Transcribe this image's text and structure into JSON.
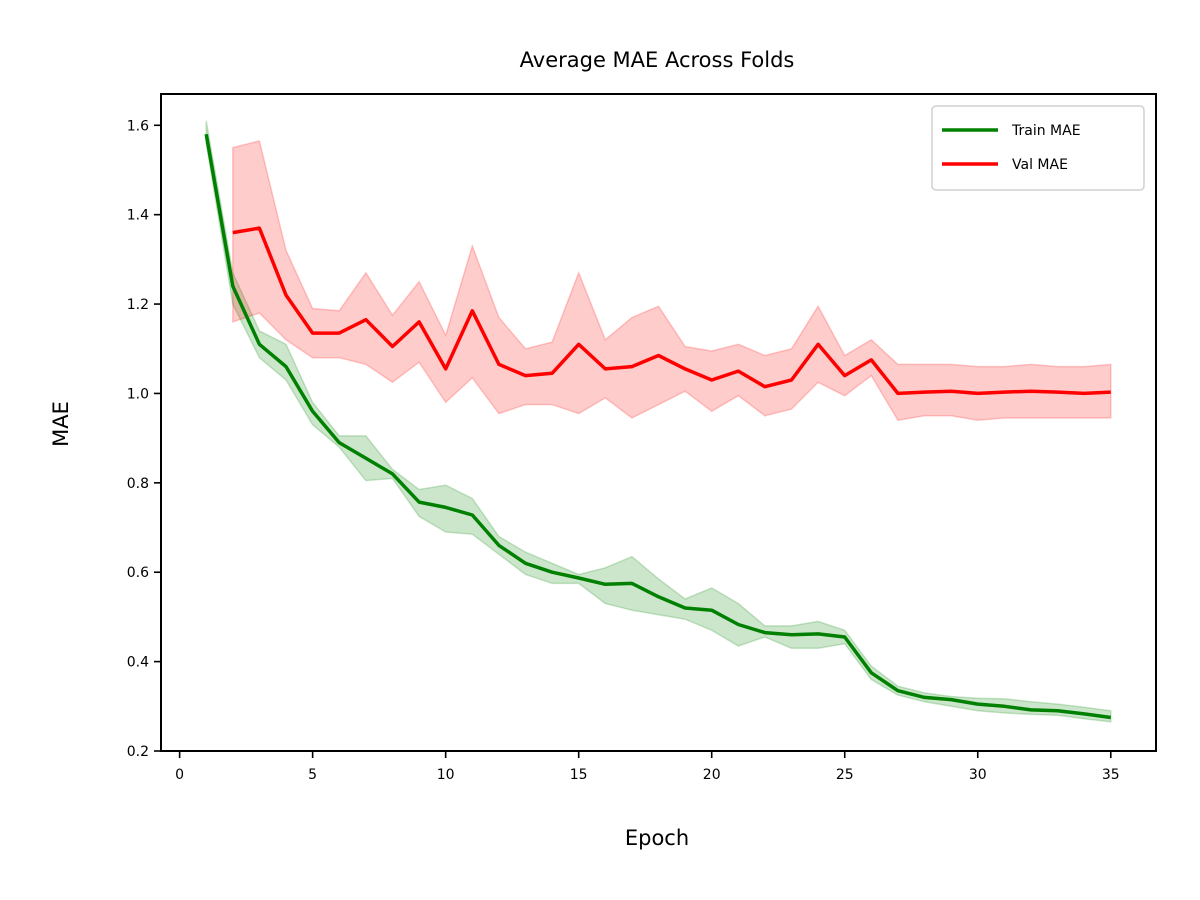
{
  "chart_data": {
    "type": "line",
    "title": "Average MAE Across Folds",
    "xlabel": "Epoch",
    "ylabel": "MAE",
    "xlim": [
      -0.7,
      36.7
    ],
    "ylim": [
      0.2,
      1.67
    ],
    "xticks": [
      0,
      5,
      10,
      15,
      20,
      25,
      30,
      35
    ],
    "yticks": [
      0.2,
      0.4,
      0.6,
      0.8,
      1.0,
      1.2,
      1.4,
      1.6
    ],
    "grid": false,
    "legend_position": "top-right",
    "series": [
      {
        "name": "Train MAE",
        "color": "#008000",
        "band_color": "#008000",
        "x": [
          1,
          2,
          3,
          4,
          5,
          6,
          7,
          8,
          9,
          10,
          11,
          12,
          13,
          14,
          15,
          16,
          17,
          18,
          19,
          20,
          21,
          22,
          23,
          24,
          25,
          26,
          27,
          28,
          29,
          30,
          31,
          32,
          33,
          34,
          35
        ],
        "values": [
          1.58,
          1.24,
          1.11,
          1.06,
          0.96,
          0.89,
          0.855,
          0.82,
          0.757,
          0.745,
          0.728,
          0.66,
          0.62,
          0.6,
          0.587,
          0.573,
          0.575,
          0.545,
          0.52,
          0.515,
          0.483,
          0.465,
          0.46,
          0.462,
          0.455,
          0.375,
          0.335,
          0.32,
          0.315,
          0.305,
          0.3,
          0.292,
          0.29,
          0.283,
          0.275
        ],
        "lower": [
          1.56,
          1.2,
          1.08,
          1.03,
          0.93,
          0.88,
          0.805,
          0.81,
          0.725,
          0.69,
          0.685,
          0.64,
          0.595,
          0.575,
          0.575,
          0.53,
          0.515,
          0.505,
          0.495,
          0.47,
          0.435,
          0.455,
          0.43,
          0.43,
          0.44,
          0.36,
          0.325,
          0.31,
          0.3,
          0.29,
          0.285,
          0.282,
          0.28,
          0.272,
          0.265
        ],
        "upper": [
          1.61,
          1.27,
          1.14,
          1.11,
          0.98,
          0.905,
          0.905,
          0.83,
          0.785,
          0.795,
          0.765,
          0.68,
          0.645,
          0.62,
          0.595,
          0.61,
          0.635,
          0.585,
          0.54,
          0.565,
          0.53,
          0.48,
          0.48,
          0.49,
          0.47,
          0.39,
          0.345,
          0.33,
          0.322,
          0.318,
          0.317,
          0.31,
          0.305,
          0.298,
          0.29
        ]
      },
      {
        "name": "Val MAE",
        "color": "#ff0000",
        "band_color": "#ff0000",
        "x": [
          2,
          3,
          4,
          5,
          6,
          7,
          8,
          9,
          10,
          11,
          12,
          13,
          14,
          15,
          16,
          17,
          18,
          19,
          20,
          21,
          22,
          23,
          24,
          25,
          26,
          27,
          28,
          29,
          30,
          31,
          32,
          33,
          34,
          35
        ],
        "values": [
          1.36,
          1.37,
          1.22,
          1.135,
          1.135,
          1.165,
          1.105,
          1.16,
          1.055,
          1.185,
          1.065,
          1.04,
          1.045,
          1.11,
          1.055,
          1.06,
          1.085,
          1.055,
          1.03,
          1.05,
          1.015,
          1.03,
          1.11,
          1.04,
          1.075,
          1.0,
          1.003,
          1.005,
          1.0,
          1.003,
          1.005,
          1.003,
          1.0,
          1.003
        ],
        "lower": [
          1.16,
          1.18,
          1.12,
          1.08,
          1.08,
          1.065,
          1.025,
          1.07,
          0.98,
          1.035,
          0.955,
          0.975,
          0.975,
          0.955,
          0.99,
          0.945,
          0.975,
          1.005,
          0.96,
          0.995,
          0.95,
          0.965,
          1.025,
          0.995,
          1.04,
          0.94,
          0.95,
          0.95,
          0.94,
          0.945,
          0.945,
          0.945,
          0.945,
          0.945
        ],
        "upper": [
          1.55,
          1.565,
          1.32,
          1.19,
          1.185,
          1.27,
          1.175,
          1.25,
          1.13,
          1.33,
          1.17,
          1.1,
          1.115,
          1.27,
          1.12,
          1.17,
          1.195,
          1.105,
          1.095,
          1.11,
          1.085,
          1.1,
          1.195,
          1.085,
          1.12,
          1.065,
          1.065,
          1.065,
          1.06,
          1.06,
          1.065,
          1.06,
          1.06,
          1.065
        ]
      }
    ]
  }
}
